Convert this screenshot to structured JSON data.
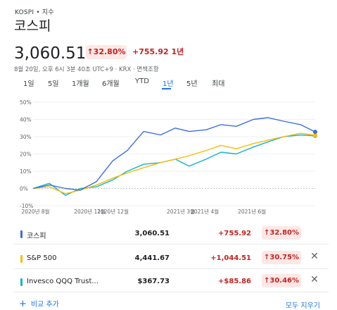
{
  "breadcrumb": "KOSPI • 지수",
  "title": "코스피",
  "price": "3,060.51",
  "change_pill": "↑32.80%",
  "change_text": "+755.92 1년",
  "meta": "8월 20일, 오후 6시 3분 40초 UTC+9 · KRX · 면책조항",
  "tabs": [
    "1일",
    "5일",
    "1개월",
    "6개월",
    "YTD",
    "1년",
    "5년",
    "최대"
  ],
  "active_tab": "1년",
  "colors": {
    "up_red": "#c5221f",
    "pill_bg": "#fce8e6",
    "accent_blue": "#1a73e8",
    "series_kospi": "#3a6fe0",
    "series_sp500": "#fbbc04",
    "series_qqq": "#12b5cb"
  },
  "chart_data": {
    "type": "line",
    "x": [
      "2020-08-20",
      "2020-09-10",
      "2020-10-01",
      "2020-10-20",
      "2020-11-10",
      "2020-12-01",
      "2020-12-20",
      "2021-01-10",
      "2021-02-01",
      "2021-02-20",
      "2021-03-10",
      "2021-04-01",
      "2021-04-20",
      "2021-05-10",
      "2021-06-01",
      "2021-06-20",
      "2021-07-10",
      "2021-08-01",
      "2021-08-20"
    ],
    "xticks": [
      "2020년 8월",
      "2020년 11월",
      "2020년 12월",
      "2021년 3월",
      "2021년 4월",
      "2021년 6월"
    ],
    "yticks": [
      "50%",
      "40%",
      "30%",
      "20%",
      "10%",
      "0%",
      "-10%"
    ],
    "ylim": [
      -10,
      50
    ],
    "grid": true,
    "series": [
      {
        "name": "코스피",
        "values": [
          0,
          2,
          0,
          -1,
          4,
          16,
          22,
          33,
          31,
          35,
          33,
          34,
          37,
          36,
          40,
          41,
          39,
          37,
          32.8
        ]
      },
      {
        "name": "S&P 500",
        "values": [
          0,
          1,
          -3,
          -1,
          2,
          6,
          9,
          12,
          15,
          17,
          19,
          22,
          25,
          23,
          26,
          28,
          30,
          32,
          30.8
        ]
      },
      {
        "name": "Invesco QQQ Trust",
        "values": [
          0,
          3,
          -4,
          0,
          1,
          5,
          10,
          14,
          15,
          17,
          13,
          17,
          21,
          20,
          24,
          27,
          30,
          31,
          30.5
        ]
      }
    ]
  },
  "comparisons": [
    {
      "name": "코스피",
      "price": "3,060.51",
      "change": "+755.92",
      "pct": "↑32.80%",
      "removable": false
    },
    {
      "name": "S&P 500",
      "price": "4,441.67",
      "change": "+1,044.51",
      "pct": "↑30.75%",
      "removable": true
    },
    {
      "name": "Invesco QQQ Trust...",
      "price": "$367.73",
      "change": "+$85.86",
      "pct": "↑30.46%",
      "removable": true
    }
  ],
  "add_label": "비교 추가",
  "clear_label": "모두 지우기"
}
